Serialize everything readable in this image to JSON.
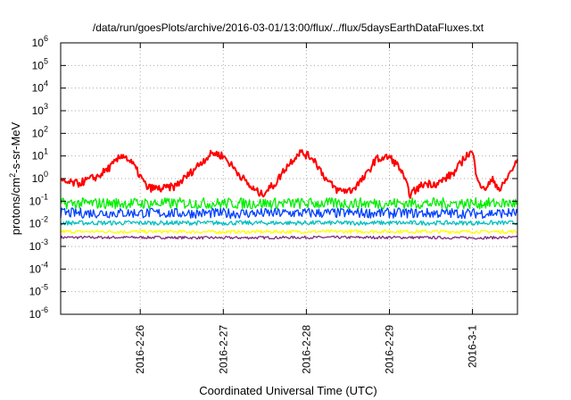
{
  "chart_data": {
    "type": "line",
    "title": "/data/run/goesPlots/archive/2016-03-01/13:00/flux/../flux/5daysEarthDataFluxes.txt",
    "xlabel": "Coordinated Universal Time (UTC)",
    "ylabel_main": "protons/cm",
    "ylabel_sup": "2",
    "ylabel_rest": "-s-sr-MeV",
    "y_scale": "log",
    "ylim": [
      1e-06,
      1000000.0
    ],
    "xlim": [
      "2016-02-25T01:00",
      "2016-03-01T13:00"
    ],
    "grid": true,
    "legend": "none",
    "x_ticks": [
      {
        "date": "2016-02-26T00:00",
        "label": "2016-2-26"
      },
      {
        "date": "2016-02-27T00:00",
        "label": "2016-2-27"
      },
      {
        "date": "2016-02-28T00:00",
        "label": "2016-2-28"
      },
      {
        "date": "2016-02-29T00:00",
        "label": "2016-2-29"
      },
      {
        "date": "2016-03-01T00:00",
        "label": "2016-3-1"
      }
    ],
    "y_ticks": [
      {
        "value": 1e-06,
        "base": "10",
        "exp": "-6"
      },
      {
        "value": 1e-05,
        "base": "10",
        "exp": "-5"
      },
      {
        "value": 0.0001,
        "base": "10",
        "exp": "-4"
      },
      {
        "value": 0.001,
        "base": "10",
        "exp": "-3"
      },
      {
        "value": 0.01,
        "base": "10",
        "exp": "-2"
      },
      {
        "value": 0.1,
        "base": "10",
        "exp": "-1"
      },
      {
        "value": 1,
        "base": "10",
        "exp": "0"
      },
      {
        "value": 10,
        "base": "10",
        "exp": "1"
      },
      {
        "value": 100,
        "base": "10",
        "exp": "2"
      },
      {
        "value": 1000,
        "base": "10",
        "exp": "3"
      },
      {
        "value": 10000,
        "base": "10",
        "exp": "4"
      },
      {
        "value": 100000,
        "base": "10",
        "exp": "5"
      },
      {
        "value": 1000000,
        "base": "10",
        "exp": "6"
      }
    ],
    "series": [
      {
        "color": "#7b2d7b",
        "x": [
          "2016-02-25T01:00",
          "2016-02-26T00:00",
          "2016-02-27T00:00",
          "2016-02-28T00:00",
          "2016-02-29T00:00",
          "2016-03-01T00:00",
          "2016-03-01T13:00"
        ],
        "values": [
          0.0025,
          0.0025,
          0.0024,
          0.0025,
          0.0025,
          0.0024,
          0.0025
        ],
        "noise": 0.12
      },
      {
        "color": "#ffff00",
        "x": [
          "2016-02-25T01:00",
          "2016-02-26T00:00",
          "2016-02-27T00:00",
          "2016-02-28T00:00",
          "2016-02-29T00:00",
          "2016-03-01T00:00",
          "2016-03-01T13:00"
        ],
        "values": [
          0.0045,
          0.0045,
          0.0044,
          0.0045,
          0.0046,
          0.0045,
          0.0045
        ],
        "noise": 0.15
      },
      {
        "color": "#00c0c0",
        "x": [
          "2016-02-25T01:00",
          "2016-02-26T00:00",
          "2016-02-27T00:00",
          "2016-02-28T00:00",
          "2016-02-29T00:00",
          "2016-03-01T00:00",
          "2016-03-01T13:00"
        ],
        "values": [
          0.011,
          0.011,
          0.011,
          0.011,
          0.011,
          0.011,
          0.011
        ],
        "noise": 0.2
      },
      {
        "color": "#0040ff",
        "x": [
          "2016-02-25T01:00",
          "2016-02-26T00:00",
          "2016-02-27T00:00",
          "2016-02-28T00:00",
          "2016-02-29T00:00",
          "2016-03-01T00:00",
          "2016-03-01T13:00"
        ],
        "values": [
          0.03,
          0.03,
          0.029,
          0.03,
          0.03,
          0.029,
          0.03
        ],
        "noise": 0.45
      },
      {
        "color": "#00ee00",
        "x": [
          "2016-02-25T01:00",
          "2016-02-26T00:00",
          "2016-02-27T00:00",
          "2016-02-28T00:00",
          "2016-02-29T00:00",
          "2016-03-01T00:00",
          "2016-03-01T13:00"
        ],
        "values": [
          0.08,
          0.08,
          0.08,
          0.08,
          0.08,
          0.08,
          0.08
        ],
        "noise": 0.5
      },
      {
        "color": "#ff0000",
        "x": [
          "2016-02-25T01:00",
          "2016-02-25T06:00",
          "2016-02-25T12:00",
          "2016-02-25T16:00",
          "2016-02-25T19:00",
          "2016-02-25T22:00",
          "2016-02-26T02:00",
          "2016-02-26T06:00",
          "2016-02-26T10:00",
          "2016-02-26T14:00",
          "2016-02-26T18:00",
          "2016-02-26T21:00",
          "2016-02-27T00:00",
          "2016-02-27T04:00",
          "2016-02-27T08:00",
          "2016-02-27T11:00",
          "2016-02-27T15:00",
          "2016-02-27T18:00",
          "2016-02-27T22:00",
          "2016-02-28T02:00",
          "2016-02-28T06:00",
          "2016-02-28T09:00",
          "2016-02-28T13:00",
          "2016-02-28T17:00",
          "2016-02-28T20:00",
          "2016-02-29T00:00",
          "2016-02-29T03:00",
          "2016-02-29T06:00",
          "2016-02-29T10:00",
          "2016-02-29T14:00",
          "2016-02-29T19:00",
          "2016-02-29T22:00",
          "2016-03-01T00:00",
          "2016-03-01T01:00",
          "2016-03-01T03:00",
          "2016-03-01T06:00",
          "2016-03-01T08:00",
          "2016-03-01T11:00",
          "2016-03-01T13:00"
        ],
        "values": [
          0.7,
          0.6,
          1.3,
          4,
          12,
          4,
          0.4,
          0.35,
          0.45,
          1.5,
          6,
          14,
          10,
          2,
          0.4,
          0.2,
          0.6,
          3,
          15,
          8,
          0.8,
          0.3,
          0.3,
          1.2,
          7,
          9,
          3,
          0.2,
          0.6,
          0.6,
          2,
          10,
          15,
          2,
          0.3,
          0.9,
          0.3,
          2,
          6
        ],
        "noise": 0.35
      }
    ]
  }
}
